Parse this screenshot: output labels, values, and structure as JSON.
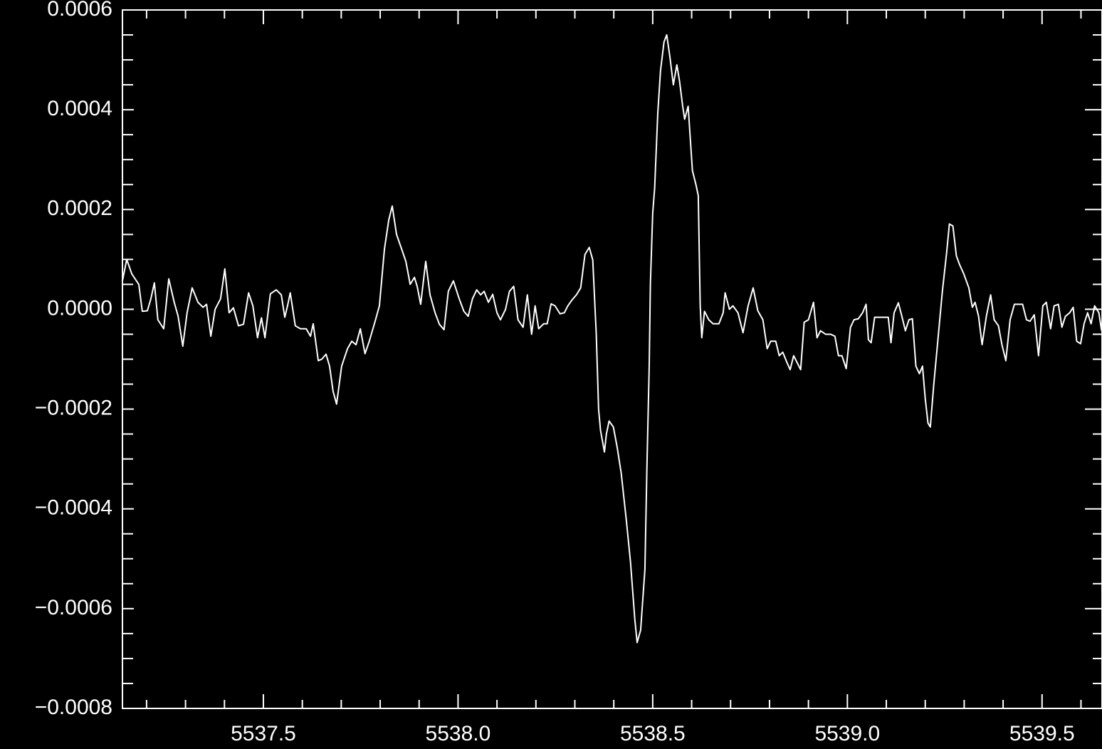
{
  "chart_data": {
    "type": "line",
    "color": "#ffffff",
    "xlim": [
      5537.138,
      5539.654
    ],
    "ylim": [
      -0.0008,
      0.0006
    ],
    "xticks": [
      5537.5,
      {
        "value": 5538,
        "label": "5538.0"
      },
      5538.5,
      {
        "value": 5539,
        "label": "5539.0"
      },
      5539.5
    ],
    "yticks": [
      {
        "value": -0.0008,
        "label": "−0.0008"
      },
      {
        "value": -0.0006,
        "label": "−0.0006"
      },
      {
        "value": -0.0004,
        "label": "−0.0004"
      },
      {
        "value": -0.0002,
        "label": "−0.0002"
      },
      {
        "value": 0,
        "label": "0.0000"
      },
      0.0002,
      0.0004,
      0.0006
    ],
    "xminorticks": [
      5537.2,
      5537.3,
      5537.4,
      5537.6,
      5537.7,
      5537.8,
      5537.9,
      5538.1,
      5538.2,
      5538.3,
      5538.4,
      5538.6,
      5538.7,
      5538.8,
      5538.9,
      5539.1,
      5539.2,
      5539.3,
      5539.4,
      5539.6
    ],
    "yminorticks": [
      -0.00075,
      -0.0007,
      -0.00065,
      -0.00055,
      -0.0005,
      -0.00045,
      -0.00035,
      -0.0003,
      -0.00025,
      -0.00015,
      -0.0001,
      -5e-05,
      5e-05,
      0.0001,
      0.00015,
      0.00025,
      0.0003,
      0.00035,
      0.00045,
      0.0005,
      0.00055
    ],
    "x": [
      5537.138,
      5537.149,
      5537.162,
      5537.18,
      5537.189,
      5537.202,
      5537.211,
      5537.22,
      5537.229,
      5537.244,
      5537.257,
      5537.271,
      5537.281,
      5537.293,
      5537.304,
      5537.317,
      5537.332,
      5537.345,
      5537.354,
      5537.365,
      5537.376,
      5537.39,
      5537.401,
      5537.412,
      5537.423,
      5537.436,
      5537.449,
      5537.462,
      5537.473,
      5537.485,
      5537.495,
      5537.504,
      5537.518,
      5537.533,
      5537.546,
      5537.555,
      5537.562,
      5537.569,
      5537.582,
      5537.595,
      5537.61,
      5537.621,
      5537.628,
      5537.641,
      5537.65,
      5537.661,
      5537.67,
      5537.679,
      5537.688,
      5537.701,
      5537.716,
      5537.727,
      5537.738,
      5537.749,
      5537.761,
      5537.772,
      5537.787,
      5537.798,
      5537.811,
      5537.822,
      5537.831,
      5537.842,
      5537.855,
      5537.866,
      5537.877,
      5537.888,
      5537.895,
      5537.904,
      5537.917,
      5537.928,
      5537.941,
      5537.952,
      5537.964,
      5537.975,
      5537.988,
      5538.003,
      5538.015,
      5538.026,
      5538.037,
      5538.048,
      5538.058,
      5538.067,
      5538.078,
      5538.089,
      5538.1,
      5538.109,
      5538.122,
      5538.132,
      5538.143,
      5538.154,
      5538.167,
      5538.178,
      5538.189,
      5538.198,
      5538.207,
      5538.22,
      5538.229,
      5538.239,
      5538.249,
      5538.262,
      5538.273,
      5538.282,
      5538.293,
      5538.304,
      5538.315,
      5538.326,
      5538.337,
      5538.346,
      5538.355,
      5538.361,
      5538.366,
      5538.376,
      5538.381,
      5538.388,
      5538.399,
      5538.409,
      5538.419,
      5538.432,
      5538.443,
      5538.454,
      5538.46,
      5538.469,
      5538.48,
      5538.485,
      5538.491,
      5538.494,
      5538.5,
      5538.505,
      5538.513,
      5538.52,
      5538.529,
      5538.536,
      5538.544,
      5538.553,
      5538.562,
      5538.569,
      5538.577,
      5538.582,
      5538.591,
      5538.597,
      5538.602,
      5538.611,
      5538.617,
      5538.622,
      5538.626,
      5538.633,
      5538.644,
      5538.655,
      5538.67,
      5538.681,
      5538.686,
      5538.697,
      5538.706,
      5538.719,
      5538.732,
      5538.745,
      5538.758,
      5538.77,
      5538.783,
      5538.794,
      5538.803,
      5538.816,
      5538.825,
      5538.834,
      5538.845,
      5538.853,
      5538.862,
      5538.873,
      5538.88,
      5538.889,
      5538.9,
      5538.913,
      5538.922,
      5538.931,
      5538.944,
      5538.957,
      5538.968,
      5538.977,
      5538.986,
      5538.997,
      5539.008,
      5539.017,
      5539.028,
      5539.039,
      5539.048,
      5539.054,
      5539.061,
      5539.07,
      5539.083,
      5539.096,
      5539.105,
      5539.112,
      5539.12,
      5539.131,
      5539.14,
      5539.149,
      5539.158,
      5539.167,
      5539.176,
      5539.185,
      5539.193,
      5539.2,
      5539.207,
      5539.213,
      5539.222,
      5539.233,
      5539.244,
      5539.255,
      5539.262,
      5539.271,
      5539.28,
      5539.288,
      5539.299,
      5539.312,
      5539.321,
      5539.328,
      5539.337,
      5539.346,
      5539.357,
      5539.368,
      5539.377,
      5539.388,
      5539.397,
      5539.407,
      5539.418,
      5539.429,
      5539.44,
      5539.45,
      5539.46,
      5539.469,
      5539.48,
      5539.491,
      5539.502,
      5539.511,
      5539.522,
      5539.531,
      5539.542,
      5539.551,
      5539.56,
      5539.571,
      5539.58,
      5539.589,
      5539.599,
      5539.608,
      5539.617,
      5539.626,
      5539.635,
      5539.646,
      5539.653
    ],
    "values": [
      5.7e-05,
      0.0001,
      7.1e-05,
      5e-05,
      -4e-06,
      -3e-06,
      2.1e-05,
      5.3e-05,
      -2.1e-05,
      -3.9e-05,
      6.1e-05,
      1.4e-05,
      -1.4e-05,
      -7.4e-05,
      -7e-06,
      4.3e-05,
      1.4e-05,
      4e-06,
      1e-05,
      -5.4e-05,
      0,
      2.1e-05,
      8.1e-05,
      -7e-06,
      3e-06,
      -3.3e-05,
      -3e-05,
      3.3e-05,
      7e-06,
      -5.7e-05,
      -1.7e-05,
      -5.7e-05,
      3.1e-05,
      3.9e-05,
      2.9e-05,
      -1.6e-05,
      7e-06,
      3.3e-05,
      -3.3e-05,
      -3.9e-05,
      -3.9e-05,
      -5.4e-05,
      -2.9e-05,
      -0.000103,
      -0.0001,
      -9e-05,
      -0.000114,
      -0.000164,
      -0.00019,
      -0.000114,
      -7.9e-05,
      -6.4e-05,
      -7.1e-05,
      -3.9e-05,
      -8.9e-05,
      -6.4e-05,
      -2.4e-05,
      7e-06,
      0.000121,
      0.000179,
      0.000207,
      0.00015,
      0.000121,
      9.6e-05,
      5e-05,
      6.4e-05,
      4.6e-05,
      1e-05,
      9.6e-05,
      2.9e-05,
      -7e-06,
      -3e-05,
      -4.1e-05,
      3.6e-05,
      5.7e-05,
      2.1e-05,
      -4e-06,
      -1.4e-05,
      2.1e-05,
      3.9e-05,
      2.9e-05,
      3.6e-05,
      1.4e-05,
      3e-05,
      -7e-06,
      -2.1e-05,
      0,
      3.6e-05,
      4.6e-05,
      -2.1e-05,
      -3.6e-05,
      2.9e-05,
      -5e-05,
      7e-06,
      -3.9e-05,
      -2.9e-05,
      -2.9e-05,
      1.1e-05,
      7e-06,
      -9e-06,
      -7e-06,
      7e-06,
      1.9e-05,
      2.9e-05,
      4.3e-05,
      0.00011,
      0.000124,
      9.9e-05,
      -5e-05,
      -0.0002,
      -0.000243,
      -0.000286,
      -0.00025,
      -0.000224,
      -0.000236,
      -0.000278,
      -0.000328,
      -0.000421,
      -0.000507,
      -0.000621,
      -0.000668,
      -0.000643,
      -0.000521,
      -0.000321,
      -0.000114,
      5e-05,
      0.000193,
      0.000243,
      0.000393,
      0.000478,
      0.000536,
      0.00055,
      0.000507,
      0.00045,
      0.00049,
      0.000457,
      0.000407,
      0.000381,
      0.000407,
      0.000336,
      0.000278,
      0.00025,
      0.000228,
      7e-06,
      -5.7e-05,
      -4e-06,
      -2.1e-05,
      -2.9e-05,
      -2.9e-05,
      -7e-06,
      3.3e-05,
      0,
      7e-06,
      -7e-06,
      -4.7e-05,
      7e-06,
      4.3e-05,
      -3e-06,
      -2.1e-05,
      -7.9e-05,
      -6.4e-05,
      -6.4e-05,
      -9.3e-05,
      -8.6e-05,
      -0.000107,
      -0.000121,
      -9.3e-05,
      -0.00011,
      -0.000121,
      -2.6e-05,
      -2.1e-05,
      1.4e-05,
      -5.7e-05,
      -4.3e-05,
      -5e-05,
      -5e-05,
      -5.4e-05,
      -9.3e-05,
      -9.3e-05,
      -0.000119,
      -3.6e-05,
      -2.1e-05,
      -1.9e-05,
      -7e-06,
      1e-05,
      -6.1e-05,
      -6.7e-05,
      -1.6e-05,
      -1.6e-05,
      -1.6e-05,
      -1.6e-05,
      -6.7e-05,
      -7e-06,
      1.3e-05,
      -1.4e-05,
      -4.3e-05,
      -2.1e-05,
      -1.9e-05,
      -0.000114,
      -0.000129,
      -0.000114,
      -0.000179,
      -0.000228,
      -0.000236,
      -0.00015,
      -5.7e-05,
      3.6e-05,
      0.000114,
      0.000171,
      0.000167,
      0.000107,
      9e-05,
      7.1e-05,
      4.3e-05,
      4e-06,
      1.4e-05,
      -1.4e-05,
      -7.1e-05,
      -1.4e-05,
      2.9e-05,
      -2.1e-05,
      -3.3e-05,
      -7.1e-05,
      -0.000103,
      -2.1e-05,
      1e-05,
      1e-05,
      1e-05,
      -2.1e-05,
      -2.4e-05,
      -1.1e-05,
      -9.3e-05,
      7e-06,
      1.4e-05,
      -3.9e-05,
      7e-06,
      1e-05,
      -3.6e-05,
      -1.4e-05,
      -7e-06,
      4e-06,
      -6.4e-05,
      -6.9e-05,
      -2.9e-05,
      -7e-06,
      -2.9e-05,
      7e-06,
      -7e-06,
      -4.3e-05
    ]
  }
}
